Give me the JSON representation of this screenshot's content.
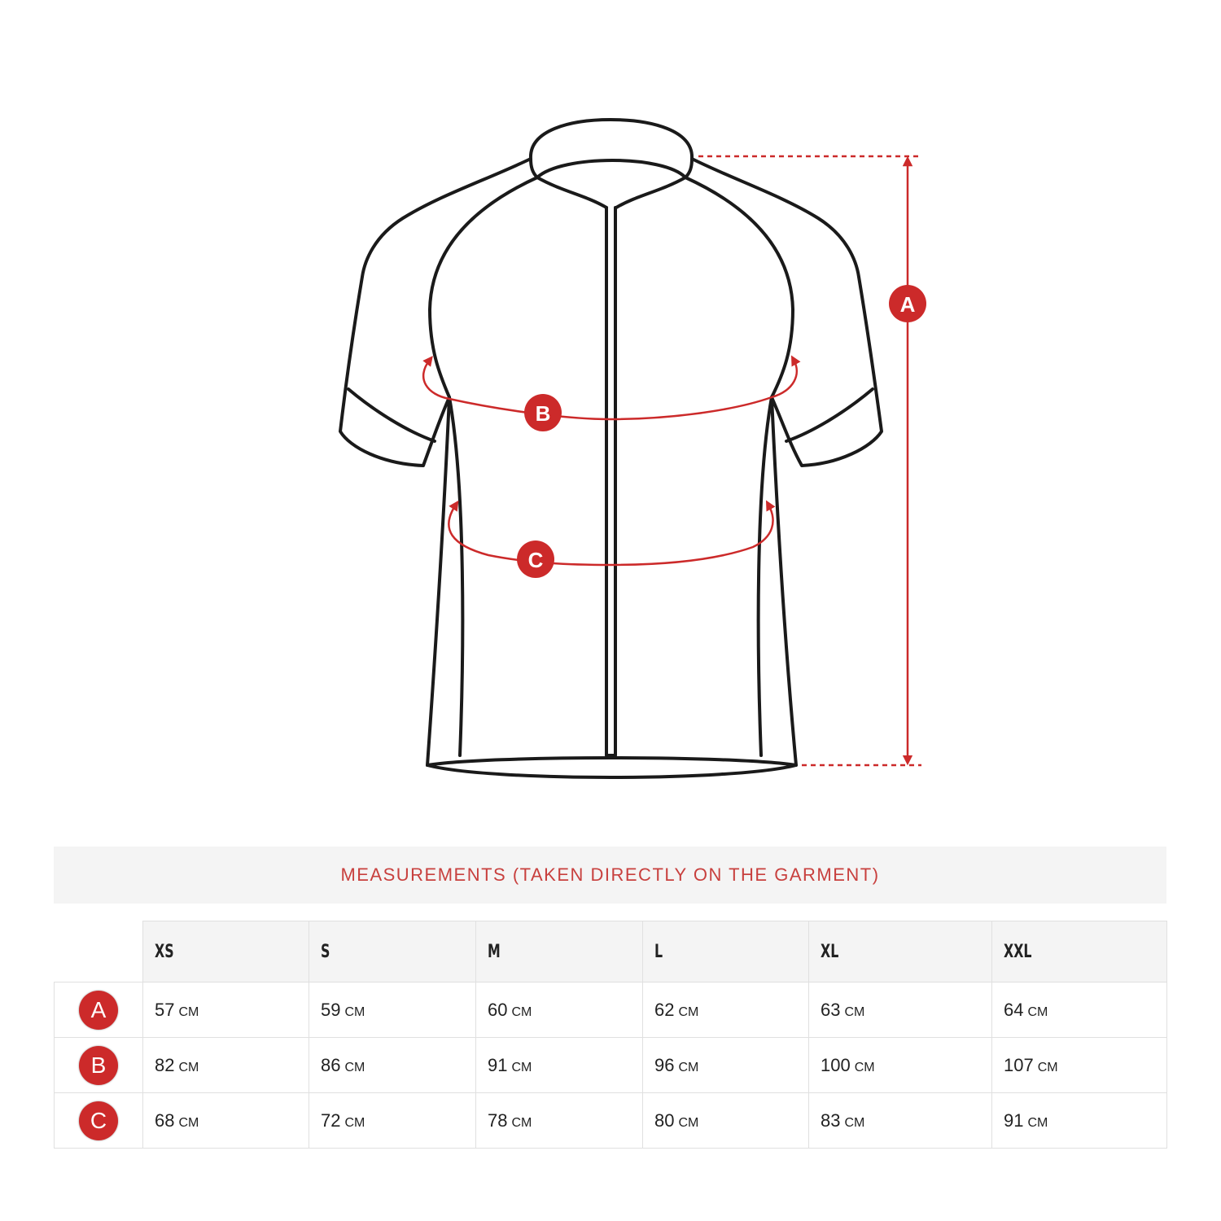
{
  "colors": {
    "accent": "#cc2a2a",
    "title": "#c8403e",
    "outline": "#1a1a1a"
  },
  "diagram": {
    "markers": [
      "A",
      "B",
      "C"
    ]
  },
  "table": {
    "title": "MEASUREMENTS (TAKEN DIRECTLY ON THE GARMENT)",
    "sizes": [
      "XS",
      "S",
      "M",
      "L",
      "XL",
      "XXL"
    ],
    "unit": "CM",
    "rows": [
      {
        "label": "A",
        "values": [
          "57",
          "59",
          "60",
          "62",
          "63",
          "64"
        ]
      },
      {
        "label": "B",
        "values": [
          "82",
          "86",
          "91",
          "96",
          "100",
          "107"
        ]
      },
      {
        "label": "C",
        "values": [
          "68",
          "72",
          "78",
          "80",
          "83",
          "91"
        ]
      }
    ]
  }
}
